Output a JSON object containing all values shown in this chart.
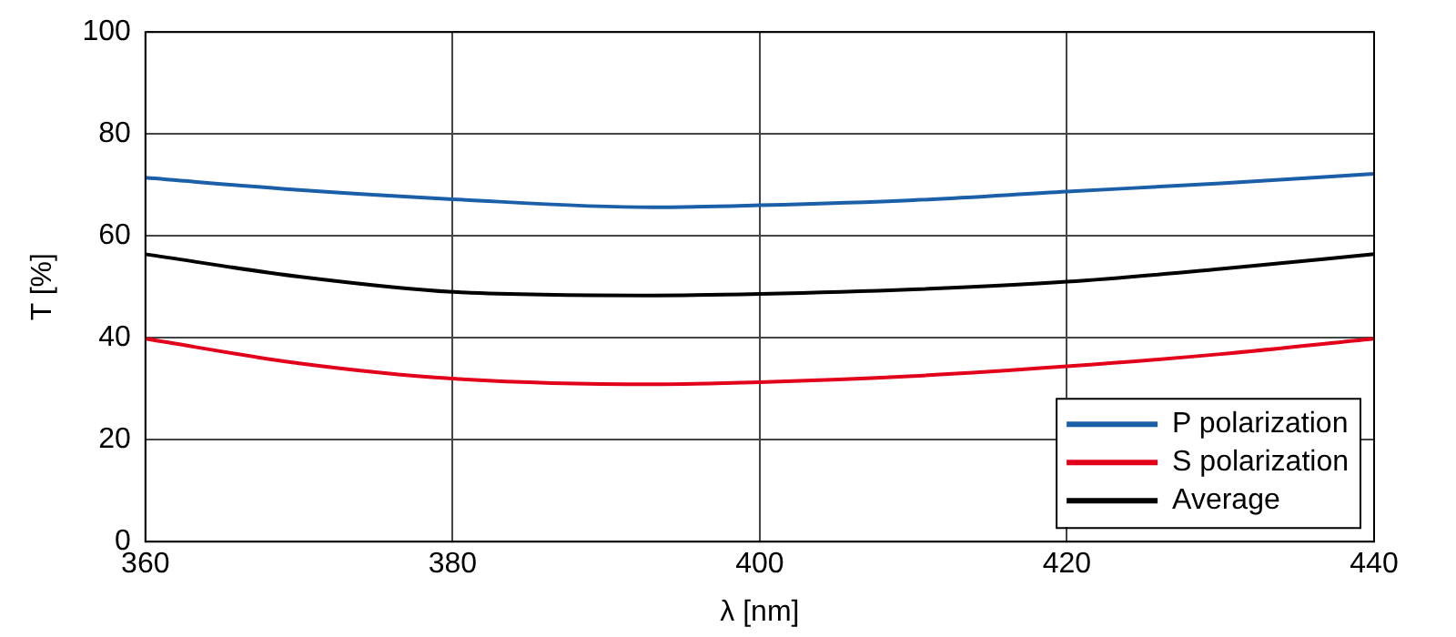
{
  "chart_data": {
    "type": "line",
    "xlabel": "λ [nm]",
    "ylabel": "T [%]",
    "x": [
      360,
      370,
      380,
      393,
      400,
      410,
      420,
      430,
      440
    ],
    "series": [
      {
        "name": "P polarization",
        "color": "#1a5fa8",
        "values": [
          71.4,
          69,
          67.2,
          65.6,
          66,
          67,
          68.7,
          70.3,
          72.2
        ]
      },
      {
        "name": "S polarization",
        "color": "#e2001a",
        "values": [
          39.8,
          35,
          32,
          30.9,
          31.3,
          32.5,
          34.4,
          36.8,
          39.8
        ]
      },
      {
        "name": "Average",
        "color": "#000000",
        "values": [
          56.4,
          52,
          49,
          48.3,
          48.6,
          49.5,
          51,
          53.5,
          56.4
        ]
      }
    ],
    "xlim": [
      360,
      440
    ],
    "xticks": [
      360,
      380,
      400,
      420,
      440
    ],
    "ylim": [
      0,
      100
    ],
    "yticks": [
      0,
      20,
      40,
      60,
      80,
      100
    ],
    "grid": true,
    "legend": "bottom right",
    "marker": "none",
    "line_style": "solid"
  }
}
